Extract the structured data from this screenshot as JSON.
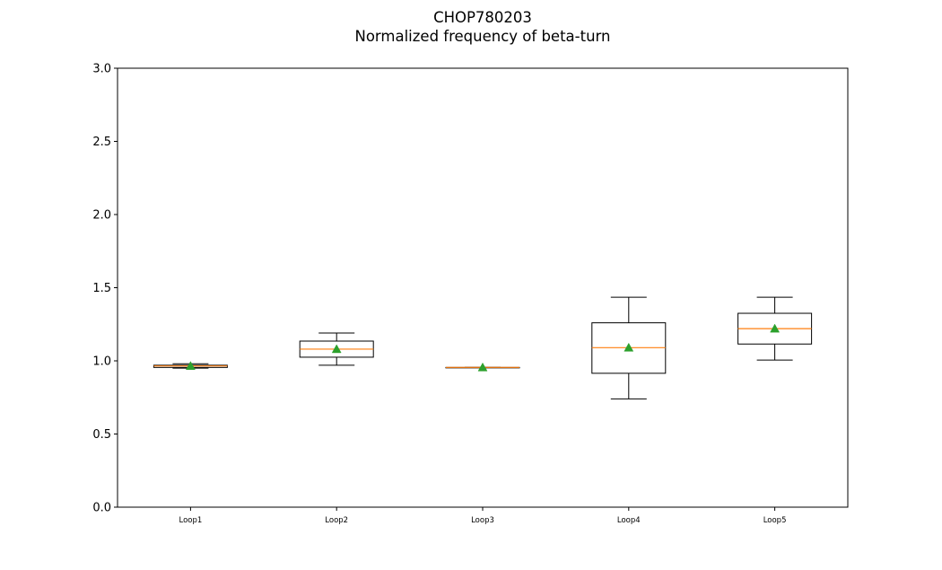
{
  "chart_data": {
    "type": "box",
    "title": "CHOP780203",
    "subtitle": "Normalized frequency of beta-turn",
    "xlabel": "",
    "ylabel": "",
    "ylim": [
      0,
      3.0
    ],
    "yticks": [
      "0.0",
      "0.5",
      "1.0",
      "1.5",
      "2.0",
      "2.5",
      "3.0"
    ],
    "grid": false,
    "categories": [
      "Loop1",
      "Loop2",
      "Loop3",
      "Loop4",
      "Loop5"
    ],
    "boxes": [
      {
        "label": "Loop1",
        "whisker_low": 0.95,
        "q1": 0.955,
        "median": 0.965,
        "q3": 0.97,
        "whisker_high": 0.98,
        "mean": 0.965
      },
      {
        "label": "Loop2",
        "whisker_low": 0.97,
        "q1": 1.025,
        "median": 1.08,
        "q3": 1.135,
        "whisker_high": 1.19,
        "mean": 1.08
      },
      {
        "label": "Loop3",
        "whisker_low": 0.955,
        "q1": 0.955,
        "median": 0.955,
        "q3": 0.955,
        "whisker_high": 0.955,
        "mean": 0.955
      },
      {
        "label": "Loop4",
        "whisker_low": 0.74,
        "q1": 0.915,
        "median": 1.09,
        "q3": 1.26,
        "whisker_high": 1.435,
        "mean": 1.09
      },
      {
        "label": "Loop5",
        "whisker_low": 1.005,
        "q1": 1.115,
        "median": 1.22,
        "q3": 1.325,
        "whisker_high": 1.435,
        "mean": 1.22
      }
    ],
    "colors": {
      "box": "#000000",
      "median": "#ff7f0e",
      "mean": "#2ca02c"
    }
  }
}
